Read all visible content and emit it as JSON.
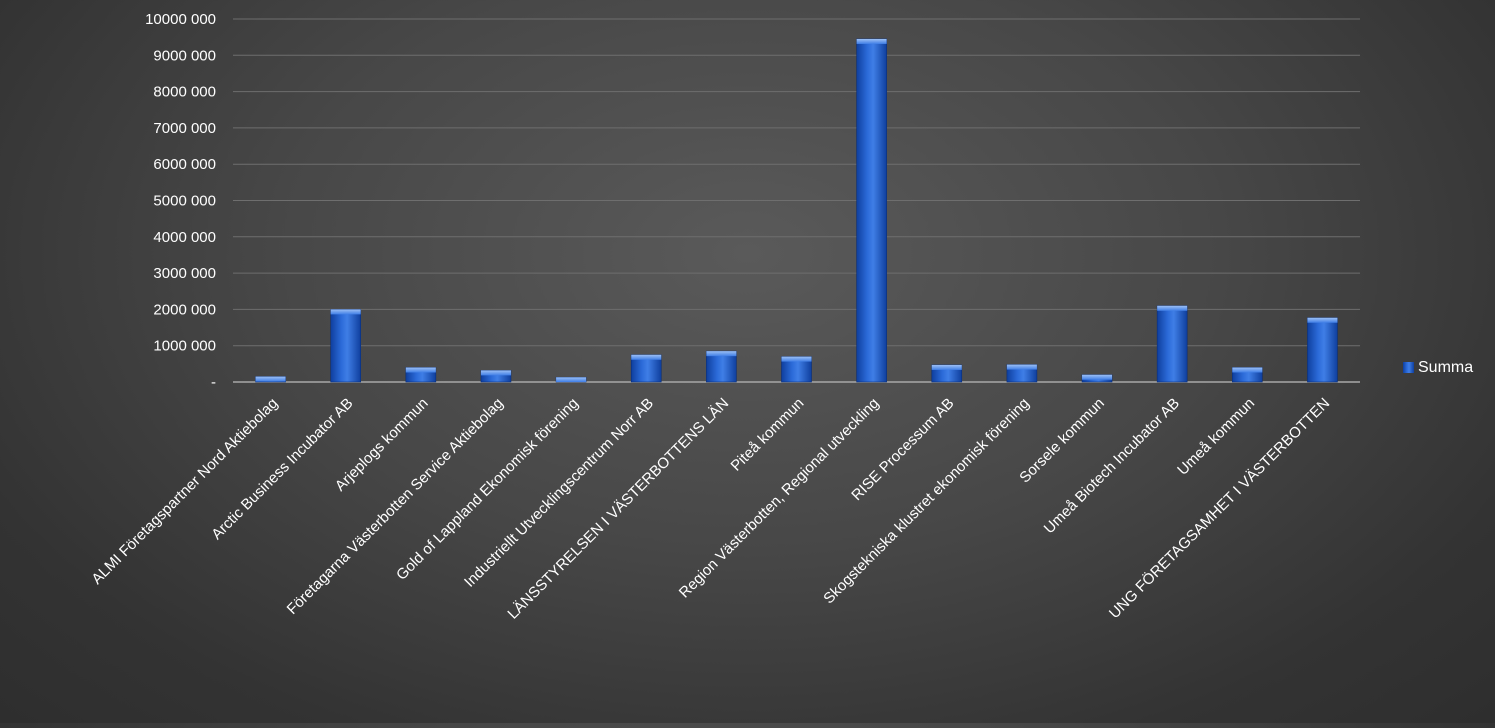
{
  "chart_data": {
    "type": "bar",
    "categories": [
      "ALMI Företagspartner Nord Aktiebolag",
      "Arctic Business Incubator AB",
      "Arjeplogs kommun",
      "Företagarna Västerbotten Service Aktiebolag",
      "Gold of Lappland Ekonomisk förening",
      "Industriellt Utvecklingscentrum Norr AB",
      "LÄNSSTYRELSEN I VÄSTERBOTTENS LÄN",
      "Piteå kommun",
      "Region Västerbotten, Regional utveckling",
      "RISE Processum AB",
      "Skogstekniska klustret ekonomisk förening",
      "Sorsele kommun",
      "Umeå Biotech Incubator AB",
      "Umeå kommun",
      "UNG FÖRETAGSAMHET I VÄSTERBOTTEN"
    ],
    "series": [
      {
        "name": "Summa",
        "values": [
          150000,
          2000000,
          400000,
          320000,
          130000,
          750000,
          850000,
          700000,
          9450000,
          470000,
          480000,
          200000,
          2100000,
          400000,
          1770000
        ]
      }
    ],
    "ylim": [
      0,
      10000000
    ],
    "yticks": [
      {
        "value": 0,
        "label": "-"
      },
      {
        "value": 1000000,
        "label": "1000 000"
      },
      {
        "value": 2000000,
        "label": "2000 000"
      },
      {
        "value": 3000000,
        "label": "3000 000"
      },
      {
        "value": 4000000,
        "label": "4000 000"
      },
      {
        "value": 5000000,
        "label": "5000 000"
      },
      {
        "value": 6000000,
        "label": "6000 000"
      },
      {
        "value": 7000000,
        "label": "7000 000"
      },
      {
        "value": 8000000,
        "label": "8000 000"
      },
      {
        "value": 9000000,
        "label": "9000 000"
      },
      {
        "value": 10000000,
        "label": "10000 000"
      }
    ],
    "grid": true,
    "legend_position": "right",
    "colors": {
      "bar_top": "#6a9ae6",
      "bar_mid": "#1b56c6",
      "bar_bottom": "#0f3f9e",
      "grid": "#6e6e6e",
      "axis": "#a8a8a8",
      "text": "#ffffff"
    }
  }
}
